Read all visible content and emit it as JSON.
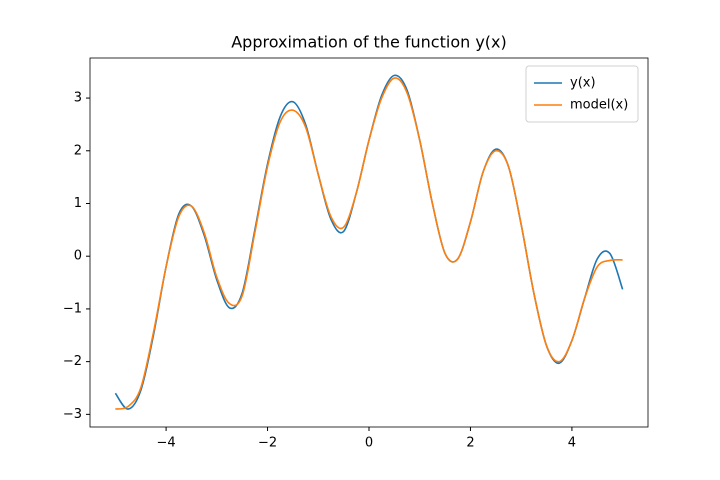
{
  "chart_data": {
    "type": "line",
    "title": "Approximation of the function y(x)",
    "x": [
      -5,
      -4.75,
      -4.5,
      -4.25,
      -4,
      -3.75,
      -3.5,
      -3.25,
      -3,
      -2.75,
      -2.5,
      -2.25,
      -2,
      -1.75,
      -1.5,
      -1.25,
      -1,
      -0.75,
      -0.5,
      -0.25,
      0,
      0.25,
      0.5,
      0.75,
      1,
      1.25,
      1.5,
      1.75,
      2,
      2.25,
      2.5,
      2.75,
      3,
      3.25,
      3.5,
      3.75,
      4,
      4.25,
      4.5,
      4.75,
      5
    ],
    "series": [
      {
        "name": "y(x)",
        "color": "#1f77b4",
        "values": [
          -2.6,
          -2.9,
          -2.55,
          -1.5,
          -0.2,
          0.8,
          0.95,
          0.4,
          -0.45,
          -0.98,
          -0.7,
          0.5,
          1.75,
          2.65,
          2.93,
          2.5,
          1.55,
          0.7,
          0.47,
          1.2,
          2.2,
          3.05,
          3.43,
          3.15,
          2.2,
          1.0,
          0.05,
          -0.05,
          0.65,
          1.6,
          2.03,
          1.7,
          0.6,
          -0.7,
          -1.7,
          -2.03,
          -1.6,
          -0.8,
          -0.05,
          0.05,
          -0.63
        ]
      },
      {
        "name": "model(x)",
        "color": "#ff7f0e",
        "values": [
          -2.9,
          -2.85,
          -2.5,
          -1.45,
          -0.2,
          0.75,
          0.95,
          0.45,
          -0.4,
          -0.9,
          -0.75,
          0.45,
          1.7,
          2.55,
          2.77,
          2.45,
          1.55,
          0.75,
          0.55,
          1.2,
          2.2,
          3.0,
          3.38,
          3.1,
          2.2,
          1.0,
          0.05,
          -0.05,
          0.65,
          1.6,
          2.0,
          1.7,
          0.6,
          -0.7,
          -1.7,
          -2.0,
          -1.6,
          -0.8,
          -0.2,
          -0.08,
          -0.07
        ]
      }
    ],
    "xlim": [
      -5.5,
      5.5
    ],
    "ylim": [
      -3.24,
      3.76
    ],
    "xticks": [
      {
        "value": -4,
        "label": "−4"
      },
      {
        "value": -2,
        "label": "−2"
      },
      0,
      2,
      4
    ],
    "yticks": [
      {
        "value": -3,
        "label": "−3"
      },
      {
        "value": -2,
        "label": "−2"
      },
      {
        "value": -1,
        "label": "−1"
      },
      0,
      1,
      2,
      3
    ],
    "legend": "upper right",
    "grid": false
  }
}
